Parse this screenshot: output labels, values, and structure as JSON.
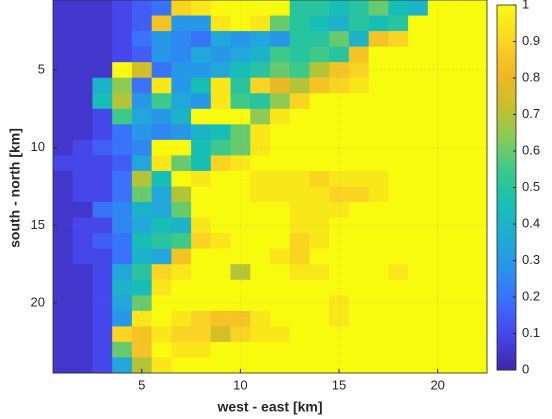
{
  "chart_data": {
    "type": "heatmap",
    "xlabel": "west - east [km]",
    "ylabel": "south - north [km]",
    "xlim": [
      0.5,
      22.5
    ],
    "ylim": [
      0.5,
      24.5
    ],
    "y_reversed": true,
    "xticks": [
      5,
      10,
      15,
      20
    ],
    "yticks": [
      5,
      10,
      15,
      20
    ],
    "clim": [
      0,
      1
    ],
    "cticks": [
      0,
      0.1,
      0.2,
      0.3,
      0.4,
      0.5,
      0.6,
      0.7,
      0.8,
      0.9,
      1
    ],
    "grid": true,
    "colormap": [
      "#3e26a8",
      "#4743e9",
      "#3c6cfc",
      "#2b90ef",
      "#1fabd5",
      "#17bfb4",
      "#38c98c",
      "#86cb57",
      "#c8c129",
      "#f3b825",
      "#fbd723",
      "#f9fb0e"
    ],
    "z": [
      [
        0.05,
        0.05,
        0.05,
        0.1,
        0.15,
        0.2,
        0.9,
        0.95,
        1,
        1,
        1,
        1,
        0.5,
        0.5,
        0.45,
        0.5,
        0.6,
        0.45,
        0.4,
        1,
        1,
        1
      ],
      [
        0.05,
        0.05,
        0.05,
        0.1,
        0.15,
        0.85,
        0.3,
        0.3,
        0.95,
        1,
        0.95,
        0.6,
        0.5,
        0.45,
        0.4,
        0.5,
        0.45,
        0.5,
        1,
        1,
        1,
        1
      ],
      [
        0.05,
        0.05,
        0.05,
        0.1,
        0.2,
        0.3,
        0.25,
        0.2,
        0.35,
        0.3,
        0.35,
        0.3,
        0.5,
        0.5,
        0.6,
        0.4,
        0.85,
        0.9,
        1,
        1,
        1,
        1
      ],
      [
        0.05,
        0.05,
        0.05,
        0.1,
        0.15,
        0.3,
        0.25,
        0.35,
        0.3,
        0.35,
        0.4,
        0.55,
        0.5,
        0.55,
        0.5,
        0.85,
        1,
        1,
        1,
        1,
        1,
        1
      ],
      [
        0.05,
        0.05,
        0.05,
        1,
        0.75,
        0.2,
        0.3,
        0.3,
        0.35,
        0.45,
        0.5,
        0.6,
        0.55,
        0.7,
        0.85,
        0.9,
        1,
        1,
        1,
        1,
        1,
        1
      ],
      [
        0.05,
        0.05,
        0.4,
        0.65,
        0.2,
        0.95,
        0.3,
        0.45,
        0.95,
        0.5,
        0.9,
        0.8,
        0.7,
        0.85,
        0.9,
        0.95,
        1,
        1,
        1,
        1,
        1,
        1
      ],
      [
        0.05,
        0.05,
        0.45,
        0.7,
        0.3,
        0.55,
        0.35,
        0.3,
        0.95,
        0.55,
        0.5,
        0.65,
        0.9,
        1,
        1,
        1,
        1,
        1,
        1,
        1,
        1,
        1
      ],
      [
        0.05,
        0.05,
        0.1,
        0.55,
        0.35,
        0.3,
        0.4,
        1,
        1,
        1,
        0.65,
        0.95,
        1,
        1,
        1,
        1,
        1,
        1,
        1,
        1,
        1,
        1
      ],
      [
        0.05,
        0.05,
        0.1,
        0.2,
        0.3,
        0.25,
        0.3,
        0.4,
        0.45,
        0.6,
        0.95,
        1,
        1,
        1,
        1,
        1,
        1,
        1,
        1,
        1,
        1,
        1
      ],
      [
        0.05,
        0.1,
        0.15,
        0.2,
        0.25,
        1,
        1,
        0.45,
        0.55,
        0.6,
        0.95,
        1,
        1,
        1,
        1,
        1,
        1,
        1,
        1,
        1,
        1,
        1
      ],
      [
        0.1,
        0.1,
        0.1,
        0.15,
        0.35,
        0.95,
        0.6,
        0.45,
        0.9,
        0.95,
        1,
        1,
        1,
        1,
        1,
        1,
        1,
        1,
        1,
        1,
        1,
        1
      ],
      [
        0.05,
        0.1,
        0.1,
        0.2,
        0.7,
        0.45,
        1,
        0.95,
        1,
        1,
        0.95,
        0.95,
        0.95,
        0.9,
        0.95,
        0.95,
        0.95,
        1,
        1,
        1,
        1,
        1
      ],
      [
        0.05,
        0.1,
        0.1,
        0.2,
        0.6,
        0.35,
        0.7,
        1,
        1,
        1,
        0.95,
        0.95,
        0.95,
        0.95,
        0.9,
        0.9,
        0.95,
        1,
        1,
        1,
        1,
        1
      ],
      [
        0.05,
        0.05,
        0.2,
        0.25,
        0.4,
        0.35,
        0.6,
        1,
        1,
        1,
        1,
        1,
        0.95,
        0.95,
        0.95,
        1,
        1,
        1,
        1,
        1,
        1,
        1
      ],
      [
        0.05,
        0.1,
        0.1,
        0.25,
        0.35,
        0.45,
        0.4,
        0.95,
        1,
        1,
        1,
        1,
        0.95,
        0.95,
        1,
        1,
        1,
        1,
        1,
        1,
        1,
        1
      ],
      [
        0.05,
        0.1,
        0.15,
        0.2,
        0.45,
        0.5,
        0.55,
        0.9,
        0.95,
        1,
        1,
        1,
        0.9,
        0.95,
        1,
        1,
        1,
        1,
        1,
        1,
        1,
        1
      ],
      [
        0.05,
        0.1,
        0.1,
        0.2,
        0.4,
        0.35,
        0.85,
        1,
        1,
        1,
        1,
        0.95,
        0.9,
        1,
        1,
        1,
        1,
        1,
        1,
        1,
        1,
        1
      ],
      [
        0.05,
        0.05,
        0.1,
        0.35,
        0.5,
        0.9,
        0.95,
        1,
        1,
        0.7,
        1,
        1,
        0.95,
        0.95,
        1,
        1,
        1,
        0.95,
        1,
        1,
        1,
        1
      ],
      [
        0.05,
        0.05,
        0.1,
        0.4,
        0.45,
        0.95,
        1,
        1,
        1,
        1,
        1,
        1,
        1,
        1,
        1,
        1,
        1,
        1,
        1,
        1,
        1,
        1
      ],
      [
        0.05,
        0.05,
        0.1,
        0.35,
        0.6,
        1,
        1,
        1,
        1,
        1,
        1,
        1,
        1,
        1,
        0.95,
        1,
        1,
        1,
        1,
        1,
        1,
        1
      ],
      [
        0.05,
        0.05,
        0.1,
        0.3,
        0.95,
        1,
        0.95,
        0.9,
        0.85,
        0.85,
        0.95,
        1,
        1,
        1,
        0.95,
        1,
        1,
        1,
        1,
        1,
        1,
        1
      ],
      [
        0.05,
        0.05,
        0.1,
        0.9,
        0.85,
        0.95,
        0.9,
        0.9,
        0.75,
        0.9,
        0.95,
        0.95,
        1,
        1,
        1,
        1,
        1,
        1,
        1,
        1,
        1,
        1
      ],
      [
        0.05,
        0.05,
        0.1,
        0.6,
        0.85,
        1,
        0.95,
        0.95,
        1,
        1,
        1,
        1,
        1,
        1,
        1,
        1,
        1,
        1,
        1,
        1,
        1,
        1
      ],
      [
        0.05,
        0.05,
        0.1,
        0.35,
        0.7,
        0.95,
        1,
        1,
        1,
        1,
        1,
        1,
        1,
        1,
        1,
        1,
        1,
        1,
        1,
        1,
        1,
        1
      ]
    ]
  }
}
